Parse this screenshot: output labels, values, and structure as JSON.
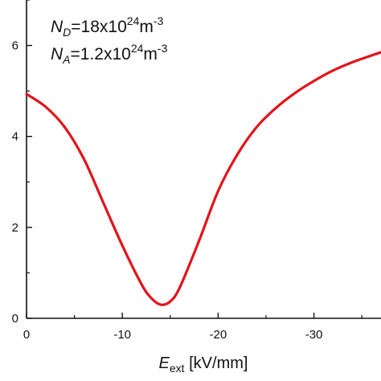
{
  "chart_data": {
    "type": "line",
    "title": "",
    "xlabel": {
      "symbol": "E",
      "subscript": "ext",
      "unit": " [kV/mm]"
    },
    "ylabel": "",
    "xlim": [
      0,
      -37
    ],
    "ylim": [
      0,
      7
    ],
    "x_ticks": [
      0,
      -10,
      -20,
      -30
    ],
    "x_tick_labels": [
      "0",
      "-10",
      "-20",
      "-30"
    ],
    "y_ticks": [
      0,
      2,
      4,
      6
    ],
    "y_tick_labels": [
      "0",
      "2",
      "4",
      "6"
    ],
    "grid": false,
    "legend": "none",
    "annotations": [
      {
        "symbol": "N",
        "sub": "D",
        "mid": "=18x10",
        "sup": "24",
        "unit": "m",
        "unit_sup": "-3"
      },
      {
        "symbol": "N",
        "sub": "A",
        "mid": "=1.2x10",
        "sup": "24",
        "unit": "m",
        "unit_sup": "-3"
      }
    ],
    "series": [
      {
        "color": "#e3131b",
        "x": [
          0,
          -2,
          -4,
          -6,
          -8,
          -10,
          -12,
          -13,
          -14,
          -15,
          -16,
          -18,
          -20,
          -22,
          -24,
          -26,
          -28,
          -30,
          -32,
          -34,
          -36,
          -37
        ],
        "y": [
          4.93,
          4.65,
          4.2,
          3.5,
          2.55,
          1.6,
          0.75,
          0.45,
          0.3,
          0.37,
          0.68,
          1.7,
          2.8,
          3.6,
          4.2,
          4.62,
          4.95,
          5.22,
          5.45,
          5.63,
          5.78,
          5.85
        ]
      }
    ]
  }
}
